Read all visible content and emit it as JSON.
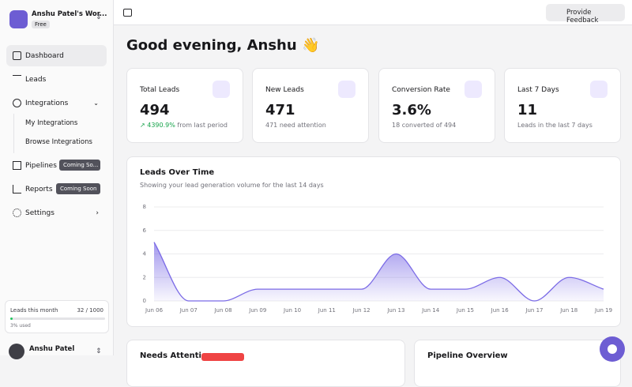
{
  "sidebar": {
    "workspace": {
      "name": "Anshu Patel's Wor...",
      "plan": "Free"
    },
    "nav": [
      {
        "label": "Dashboard"
      },
      {
        "label": "Leads"
      },
      {
        "label": "Integrations",
        "children": [
          {
            "label": "My Integrations"
          },
          {
            "label": "Browse Integrations"
          }
        ]
      },
      {
        "label": "Pipelines",
        "badge": "Coming So..."
      },
      {
        "label": "Reports",
        "badge": "Coming Soon"
      },
      {
        "label": "Settings"
      }
    ],
    "usage": {
      "label": "Leads this month",
      "count": "32 / 1000",
      "percent": "3% used"
    },
    "user": {
      "name": "Anshu Patel"
    }
  },
  "header": {
    "feedback": "Provide Feedback"
  },
  "greeting": "Good evening, Anshu 👋",
  "stats": [
    {
      "title": "Total Leads",
      "value": "494",
      "change": "4390.9%",
      "note": "from last period"
    },
    {
      "title": "New Leads",
      "value": "471",
      "note": "471 need attention"
    },
    {
      "title": "Conversion Rate",
      "value": "3.6%",
      "note": "18 converted of 494"
    },
    {
      "title": "Last 7 Days",
      "value": "11",
      "note": "Leads in the last 7 days"
    }
  ],
  "chart_data": {
    "type": "area",
    "title": "Leads Over Time",
    "subtitle": "Showing your lead generation volume for the last 14 days",
    "categories": [
      "Jun 06",
      "Jun 07",
      "Jun 08",
      "Jun 09",
      "Jun 10",
      "Jun 11",
      "Jun 12",
      "Jun 13",
      "Jun 14",
      "Jun 15",
      "Jun 16",
      "Jun 17",
      "Jun 18",
      "Jun 19"
    ],
    "values": [
      5,
      0,
      0,
      1,
      1,
      1,
      1,
      4,
      1,
      1,
      2,
      0,
      2,
      1
    ],
    "color": "#7b6be6",
    "ylim": [
      0,
      8
    ],
    "yticks": [
      0,
      2,
      4,
      6,
      8
    ],
    "grid": true
  },
  "panels": [
    {
      "title": "Needs Attention"
    },
    {
      "title": "Pipeline Overview"
    }
  ]
}
